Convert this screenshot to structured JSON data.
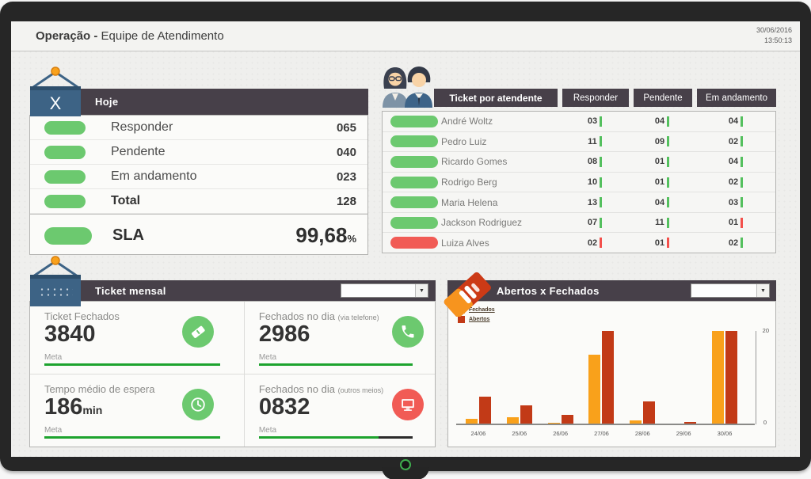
{
  "header": {
    "title_bold": "Operação -",
    "title_rest": " Equipe de Atendimento",
    "date": "30/06/2016",
    "time": "13:50:13"
  },
  "colors": {
    "green": "#6cc96f",
    "red": "#f15b55",
    "tick_green": "#54c05e",
    "tick_red": "#f3504b",
    "header_dark": "#474049",
    "blue": "#3d6385",
    "meta_green": "#1da32e",
    "fechados_orange": "#f9a11b",
    "abertos_brick": "#c23a17"
  },
  "hoje": {
    "sign": "X",
    "title": "Hoje",
    "rows": [
      {
        "label": "Responder",
        "value": "065",
        "bold": false,
        "status": "green"
      },
      {
        "label": "Pendente",
        "value": "040",
        "bold": false,
        "status": "green"
      },
      {
        "label": "Em andamento",
        "value": "023",
        "bold": false,
        "status": "green"
      },
      {
        "label": "Total",
        "value": "128",
        "bold": true,
        "status": "green"
      }
    ],
    "sla": {
      "label": "SLA",
      "value": "99,68",
      "unit": "%",
      "status": "green"
    }
  },
  "atendente": {
    "title": "Ticket por atendente",
    "columns": [
      "Responder",
      "Pendente",
      "Em andamento"
    ],
    "rows": [
      {
        "name": "André Woltz",
        "status": "green",
        "values": [
          {
            "v": "03",
            "c": "green"
          },
          {
            "v": "04",
            "c": "green"
          },
          {
            "v": "04",
            "c": "green"
          }
        ]
      },
      {
        "name": "Pedro Luiz",
        "status": "green",
        "values": [
          {
            "v": "11",
            "c": "green"
          },
          {
            "v": "09",
            "c": "green"
          },
          {
            "v": "02",
            "c": "green"
          }
        ]
      },
      {
        "name": "Ricardo Gomes",
        "status": "green",
        "values": [
          {
            "v": "08",
            "c": "green"
          },
          {
            "v": "01",
            "c": "green"
          },
          {
            "v": "04",
            "c": "green"
          }
        ]
      },
      {
        "name": "Rodrigo Berg",
        "status": "green",
        "values": [
          {
            "v": "10",
            "c": "green"
          },
          {
            "v": "01",
            "c": "green"
          },
          {
            "v": "02",
            "c": "green"
          }
        ]
      },
      {
        "name": "Maria Helena",
        "status": "green",
        "values": [
          {
            "v": "13",
            "c": "green"
          },
          {
            "v": "04",
            "c": "green"
          },
          {
            "v": "03",
            "c": "green"
          }
        ]
      },
      {
        "name": "Jackson Rodriguez",
        "status": "green",
        "values": [
          {
            "v": "07",
            "c": "green"
          },
          {
            "v": "11",
            "c": "green"
          },
          {
            "v": "01",
            "c": "red"
          }
        ]
      },
      {
        "name": "Luiza Alves",
        "status": "red",
        "values": [
          {
            "v": "02",
            "c": "red"
          },
          {
            "v": "01",
            "c": "red"
          },
          {
            "v": "02",
            "c": "green"
          }
        ]
      }
    ]
  },
  "mensal": {
    "title": "Ticket mensal",
    "metrics": [
      {
        "label": "Ticket Fechados",
        "sublabel": "",
        "value": "3840",
        "suffix": "",
        "meta_label": "Meta",
        "meta_pct": 100,
        "icon": "ticket-icon",
        "icon_color": "#6cc96f"
      },
      {
        "label": "Fechados no dia",
        "sublabel": "(via telefone)",
        "value": "2986",
        "suffix": "",
        "meta_label": "Meta",
        "meta_pct": 100,
        "icon": "phone-icon",
        "icon_color": "#6cc96f"
      },
      {
        "label": "Tempo médio de espera",
        "sublabel": "",
        "value": "186",
        "suffix": "min",
        "meta_label": "Meta",
        "meta_pct": 100,
        "icon": "clock-icon",
        "icon_color": "#6cc96f"
      },
      {
        "label": "Fechados no dia",
        "sublabel": "(outros meios)",
        "value": "0832",
        "suffix": "",
        "meta_label": "Meta",
        "meta_pct": 78,
        "icon": "monitor-icon",
        "icon_color": "#f15b55"
      }
    ]
  },
  "abertos": {
    "title": "Abertos x Fechados"
  },
  "chart_data": {
    "type": "bar",
    "title": "Abertos x Fechados",
    "categories": [
      "24/06",
      "25/06",
      "26/06",
      "27/06",
      "28/06",
      "29/06",
      "30/06"
    ],
    "series": [
      {
        "name": "Fechados",
        "color": "#f9a11b",
        "values": [
          1.2,
          1.6,
          0.4,
          15,
          0.9,
          0.2,
          20
        ]
      },
      {
        "name": "Abertos",
        "color": "#c23a17",
        "values": [
          6,
          4,
          2,
          20,
          5,
          0.5,
          20
        ]
      }
    ],
    "xlabel": "",
    "ylabel": "",
    "ylim": [
      0,
      20
    ],
    "yticks": [
      "0",
      "20"
    ],
    "legend_position": "top-left",
    "axis_side": "right",
    "grid": false
  }
}
